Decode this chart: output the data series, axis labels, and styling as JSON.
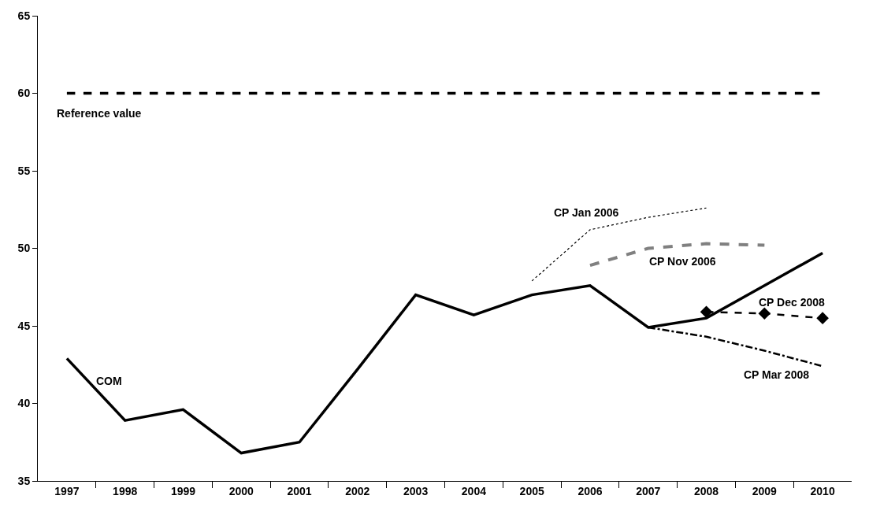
{
  "chart_data": {
    "type": "line",
    "categories": [
      "1997",
      "1998",
      "1999",
      "2000",
      "2001",
      "2002",
      "2003",
      "2004",
      "2005",
      "2006",
      "2007",
      "2008",
      "2009",
      "2010"
    ],
    "ylim": [
      35,
      65
    ],
    "yticks": [
      35,
      40,
      45,
      50,
      55,
      60,
      65
    ],
    "legend": false,
    "series": [
      {
        "name": "COM",
        "color": "#000000",
        "line_style": "solid",
        "values": [
          42.9,
          38.9,
          39.6,
          36.8,
          37.5,
          42.2,
          47.0,
          45.7,
          47.0,
          47.6,
          44.9,
          45.5,
          47.6,
          49.7
        ]
      },
      {
        "name": "CP Jan 2006",
        "color": "#000000",
        "line_style": "dotted",
        "values": [
          null,
          null,
          null,
          null,
          null,
          null,
          null,
          null,
          47.9,
          51.2,
          52.0,
          52.6,
          null,
          null
        ]
      },
      {
        "name": "CP Nov 2006",
        "color": "#808080",
        "line_style": "dashed",
        "values": [
          null,
          null,
          null,
          null,
          null,
          null,
          null,
          null,
          null,
          48.9,
          50.0,
          50.3,
          50.2,
          null
        ]
      },
      {
        "name": "CP Dec 2008",
        "color": "#000000",
        "line_style": "dashed",
        "marker": "diamond",
        "values": [
          null,
          null,
          null,
          null,
          null,
          null,
          null,
          null,
          null,
          null,
          null,
          45.9,
          45.8,
          45.5
        ]
      },
      {
        "name": "CP Mar 2008",
        "color": "#000000",
        "line_style": "dashdot",
        "values": [
          null,
          null,
          null,
          null,
          null,
          null,
          null,
          null,
          null,
          null,
          44.9,
          44.3,
          43.4,
          42.4
        ]
      }
    ],
    "ref_lines": [
      {
        "axis": "y",
        "value": 60,
        "label": "Reference value",
        "color": "#000000",
        "line_style": "dashed"
      }
    ]
  }
}
